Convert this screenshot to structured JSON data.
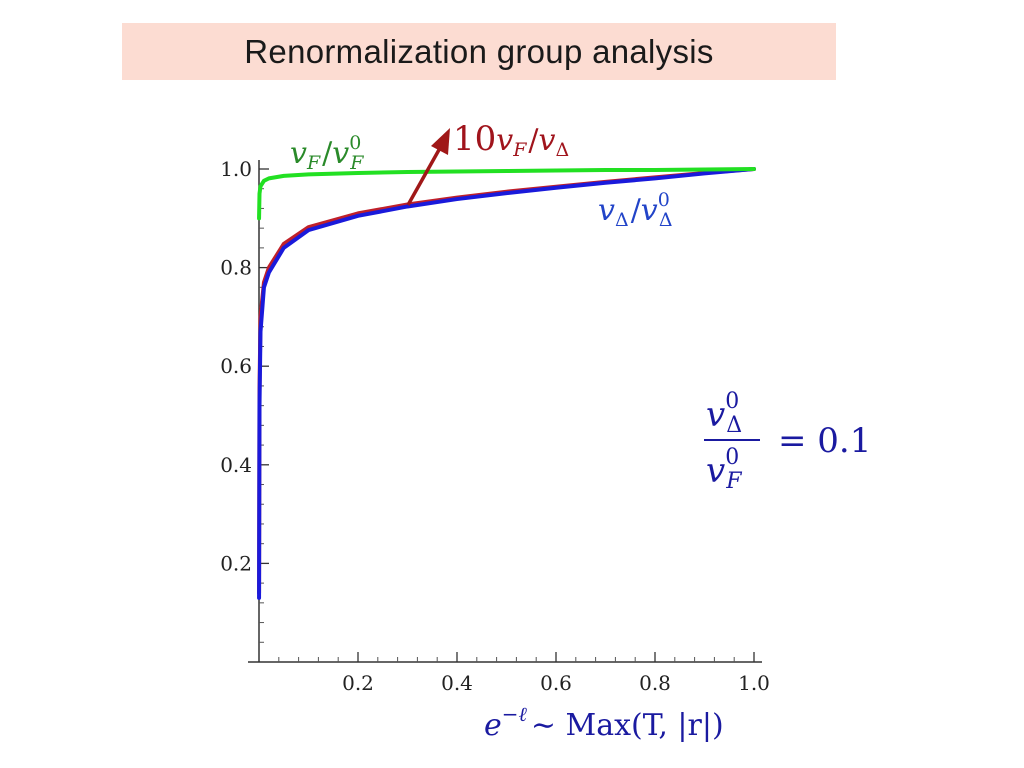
{
  "title": "Renormalization group analysis",
  "colors": {
    "title_background": "#fcdcd2",
    "vF": "#22e022",
    "red": "#c0202a",
    "blue": "#1a1adb",
    "arrow": "#a01818",
    "label_blue": "#2244c8",
    "label_green": "#2a8a2a",
    "label_red": "#a0141c",
    "annotation": "#1a1aa0"
  },
  "chart_data": {
    "type": "line",
    "title": "",
    "xlim": [
      0,
      1
    ],
    "ylim": [
      0,
      1
    ],
    "x_ticks": [
      0.2,
      0.4,
      0.6,
      0.8,
      1.0
    ],
    "x_tick_labels": [
      "0.2",
      "0.4",
      "0.6",
      "0.8",
      "1.0"
    ],
    "y_ticks": [
      0.2,
      0.4,
      0.6,
      0.8,
      1.0
    ],
    "y_tick_labels": [
      "0.2",
      "0.4",
      "0.6",
      "0.8",
      "1.0"
    ],
    "grid": false,
    "x_axis_label": {
      "base": "e",
      "exponent": "−ℓ",
      "rest": "∼ Max(T, |r|)"
    },
    "annotation": {
      "numerator": "v",
      "numerator_sub": "Δ",
      "numerator_sup": "0",
      "denominator": "v",
      "denominator_sub": "F",
      "denominator_sup": "0",
      "value": "= 0.1"
    },
    "series": [
      {
        "label": {
          "base": "v",
          "sub": "F",
          "slash": "/",
          "base2": "v",
          "sub2": "F",
          "sup2": "0"
        },
        "x": [
          0.0001,
          0.001,
          0.003,
          0.01,
          0.02,
          0.05,
          0.1,
          0.2,
          0.3,
          0.4,
          0.5,
          0.6,
          0.7,
          0.8,
          0.9,
          1.0
        ],
        "y": [
          0.9,
          0.95,
          0.965,
          0.976,
          0.981,
          0.986,
          0.989,
          0.992,
          0.994,
          0.995,
          0.996,
          0.997,
          0.998,
          0.998,
          0.999,
          1.0
        ]
      },
      {
        "label": {
          "prefix": "10",
          "base": "v",
          "sub": "F",
          "slash": "/",
          "base2": "v",
          "sub2": "Δ"
        },
        "x": [
          0.0001,
          0.001,
          0.003,
          0.01,
          0.02,
          0.05,
          0.1,
          0.2,
          0.3,
          0.4,
          0.5,
          0.6,
          0.7,
          0.8,
          0.9,
          1.0
        ],
        "y": [
          0.14,
          0.55,
          0.7,
          0.77,
          0.8,
          0.848,
          0.882,
          0.91,
          0.928,
          0.942,
          0.954,
          0.964,
          0.974,
          0.983,
          0.992,
          1.0
        ]
      },
      {
        "label": {
          "base": "v",
          "sub": "Δ",
          "slash": "/",
          "base2": "v",
          "sub2": "Δ",
          "sup2": "0"
        },
        "x": [
          0.0001,
          0.001,
          0.003,
          0.01,
          0.02,
          0.05,
          0.1,
          0.2,
          0.3,
          0.4,
          0.5,
          0.6,
          0.7,
          0.8,
          0.9,
          1.0
        ],
        "y": [
          0.13,
          0.52,
          0.67,
          0.76,
          0.79,
          0.84,
          0.876,
          0.905,
          0.924,
          0.939,
          0.951,
          0.962,
          0.972,
          0.981,
          0.991,
          1.0
        ]
      }
    ]
  }
}
